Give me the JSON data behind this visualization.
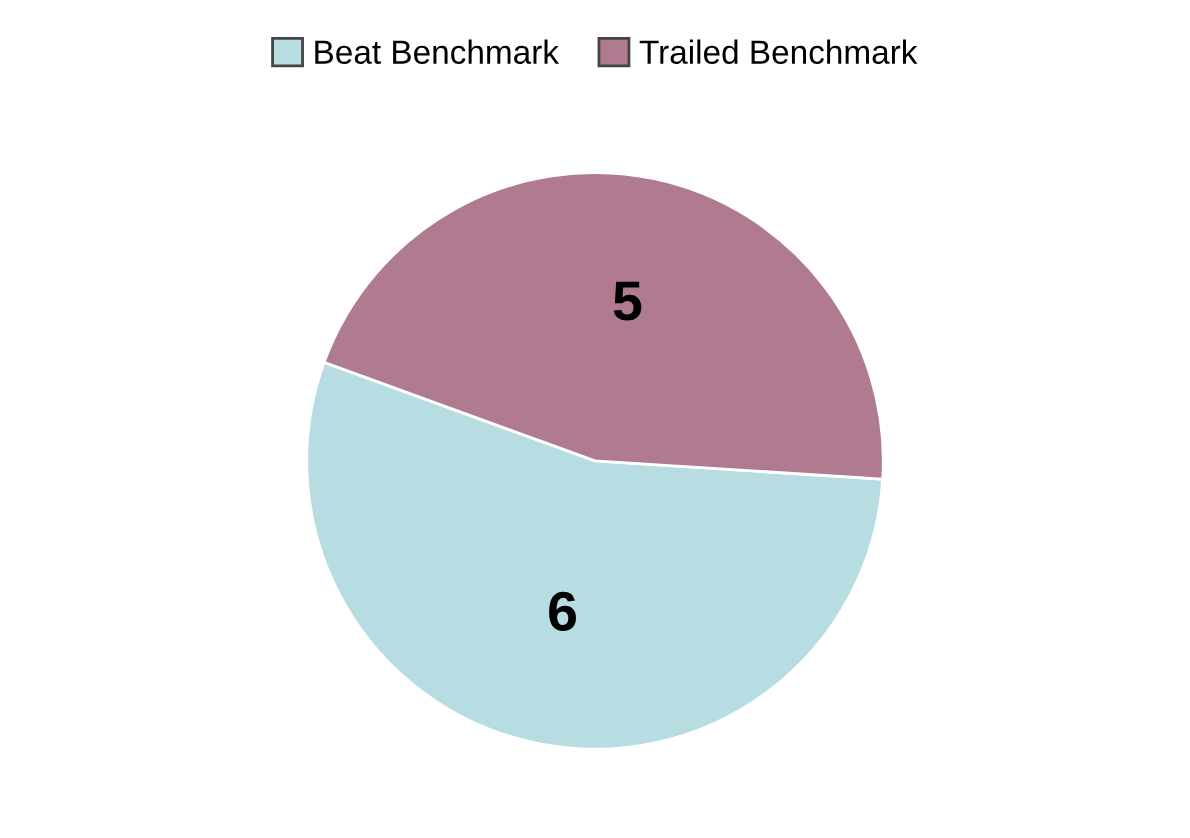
{
  "chart_data": {
    "type": "pie",
    "categories": [
      "Beat Benchmark",
      "Trailed Benchmark"
    ],
    "values": [
      6,
      5
    ],
    "colors": [
      "#b7dde3",
      "#b07a90"
    ],
    "data_labels": true,
    "legend": "top"
  }
}
